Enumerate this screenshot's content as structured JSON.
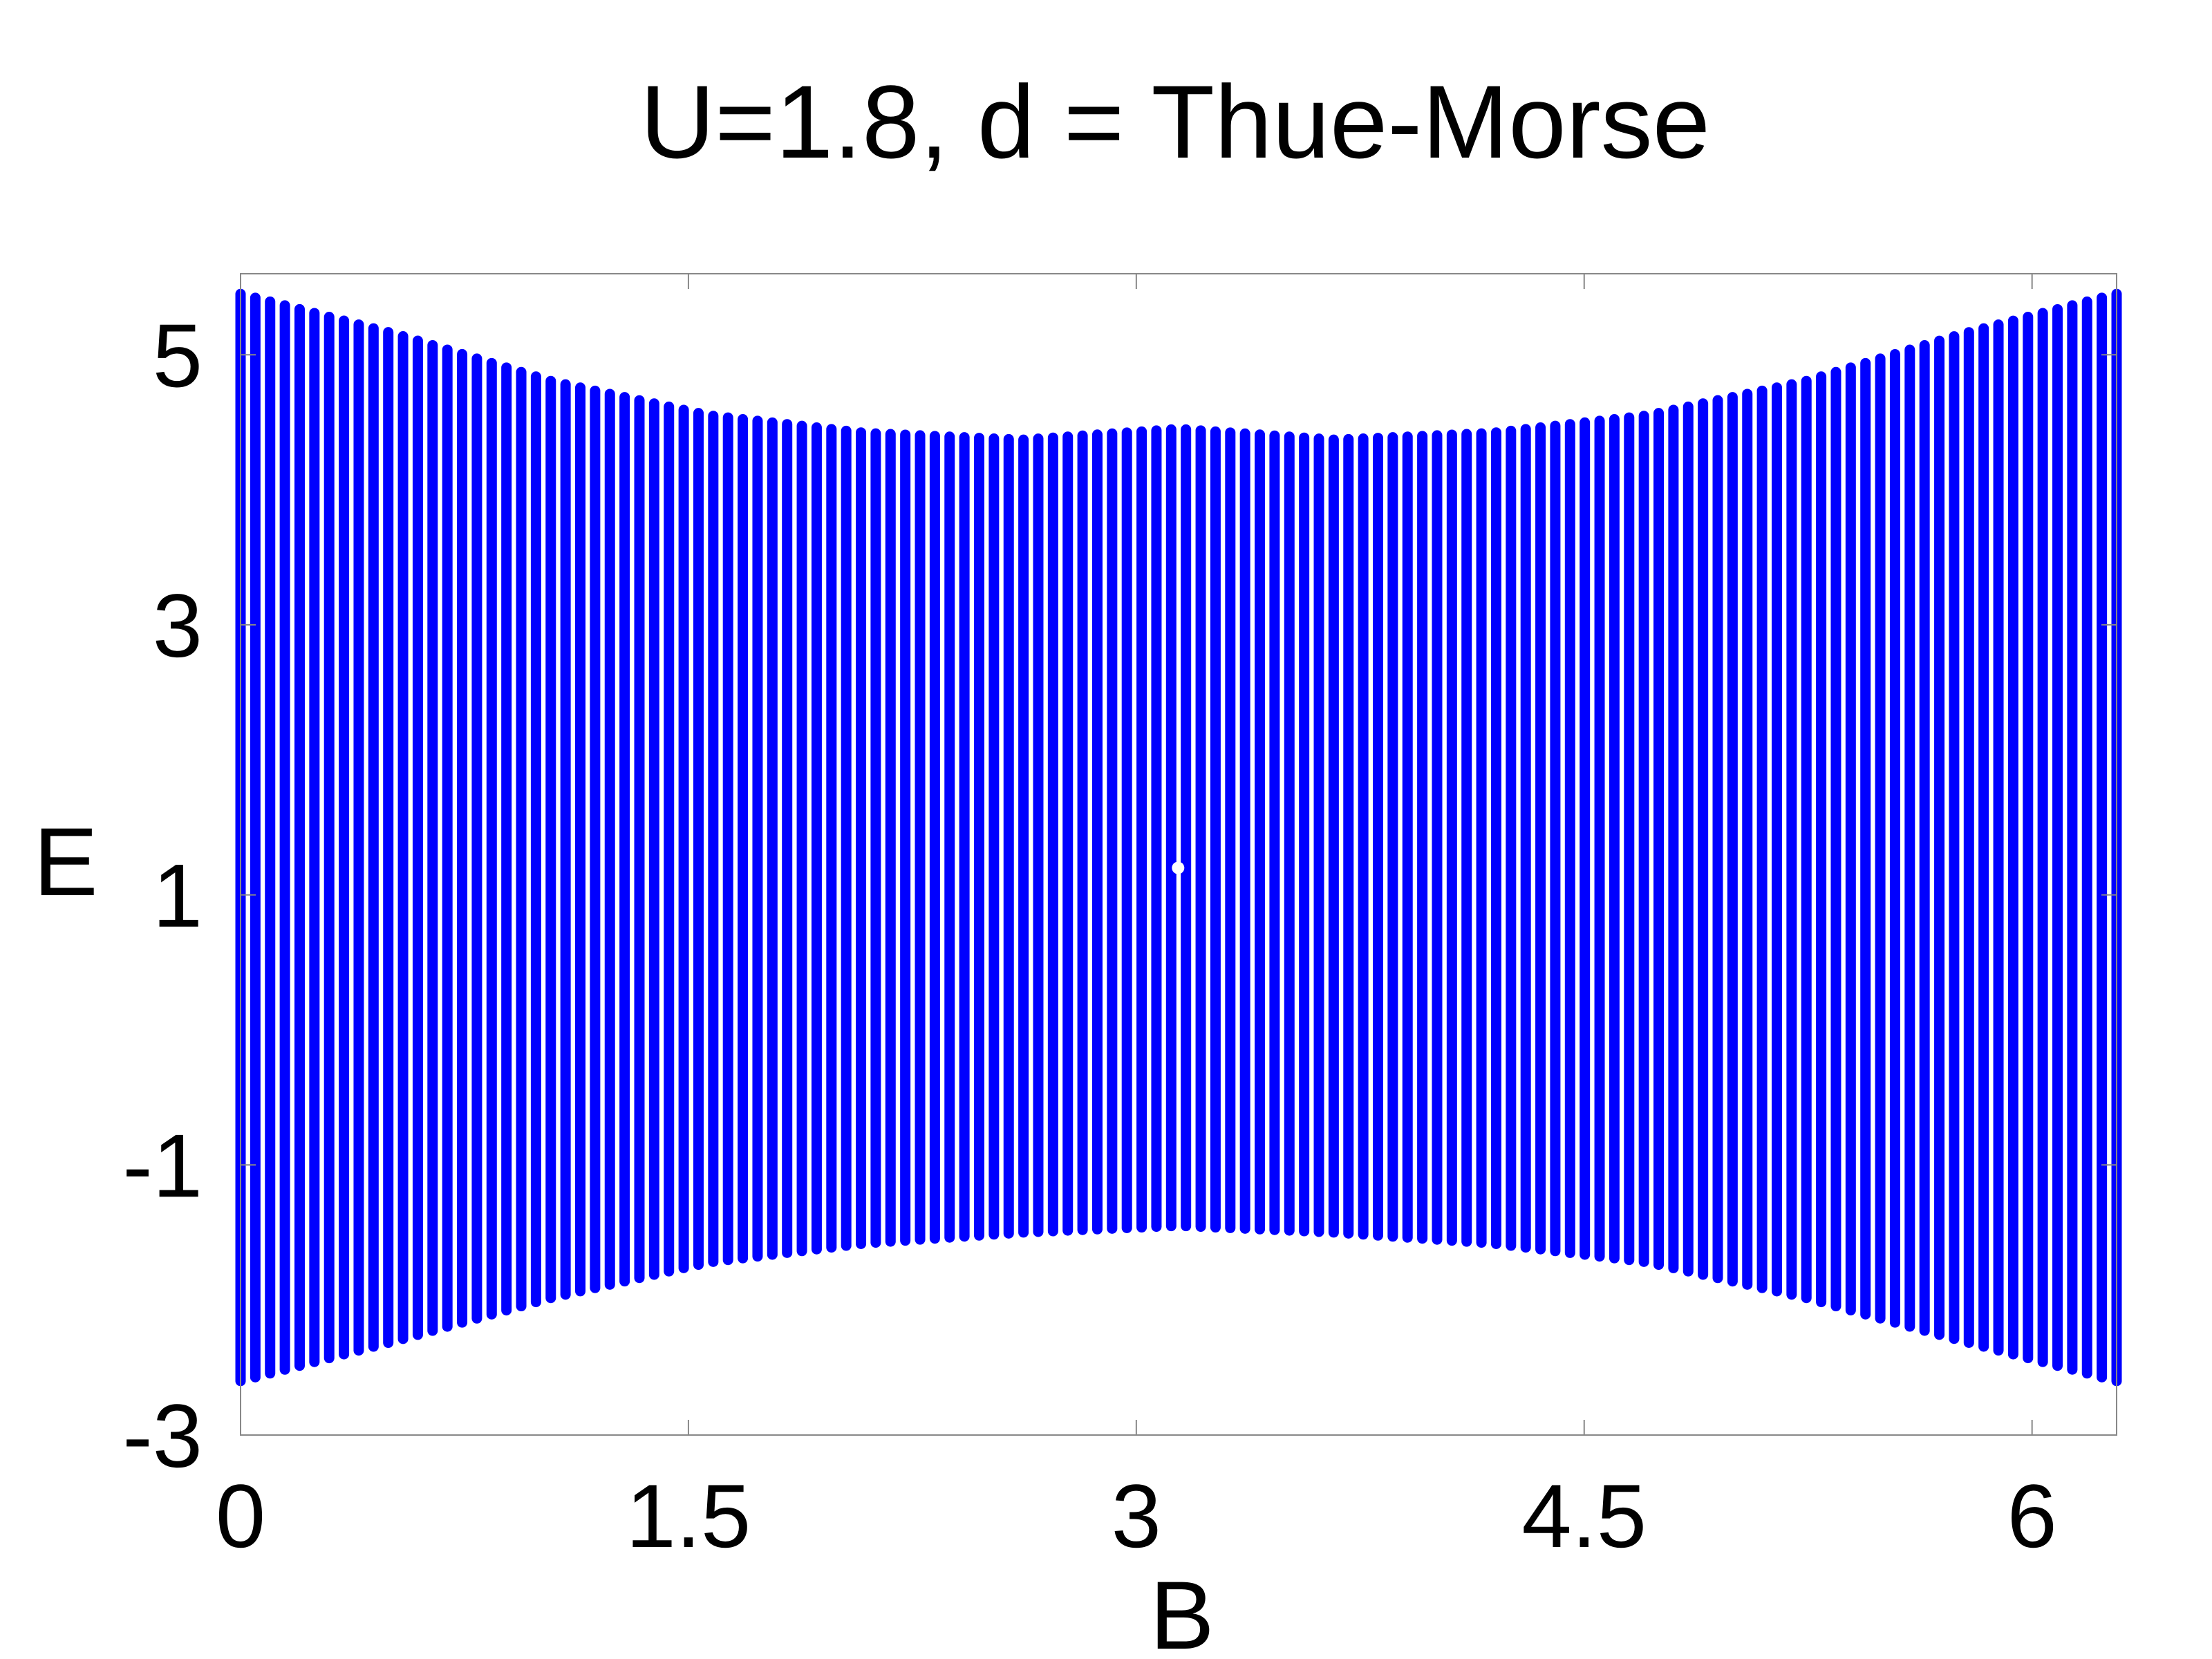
{
  "chart_data": {
    "type": "scatter",
    "title": "U=1.8, d = Thue-Morse",
    "xlabel": "B",
    "ylabel": "E",
    "xlim": [
      0,
      6.2832
    ],
    "ylim": [
      -3,
      5.6
    ],
    "xticks": [
      0,
      1.5,
      3,
      4.5,
      6
    ],
    "xtick_labels": [
      "0",
      "1.5",
      "3",
      "4.5",
      "6"
    ],
    "yticks": [
      -3,
      -1,
      1,
      3,
      5
    ],
    "ytick_labels": [
      "-3",
      "-1",
      "1",
      "3",
      "5"
    ],
    "grid": false,
    "legend": "none",
    "marker_color": "#0000ff",
    "series": [
      {
        "columns": 128,
        "band_x": [
          0,
          0.524,
          1.047,
          1.571,
          2.094,
          2.618,
          3.142,
          3.665,
          4.189,
          4.712,
          5.236,
          5.76,
          6.283
        ],
        "band_top": [
          5.45,
          5.15,
          4.8,
          4.55,
          4.42,
          4.37,
          4.45,
          4.37,
          4.42,
          4.55,
          4.8,
          5.15,
          5.45
        ],
        "band_bottom": [
          -2.6,
          -2.3,
          -1.98,
          -1.72,
          -1.58,
          -1.5,
          -1.45,
          -1.5,
          -1.58,
          -1.72,
          -1.98,
          -2.3,
          -2.6
        ]
      }
    ]
  }
}
